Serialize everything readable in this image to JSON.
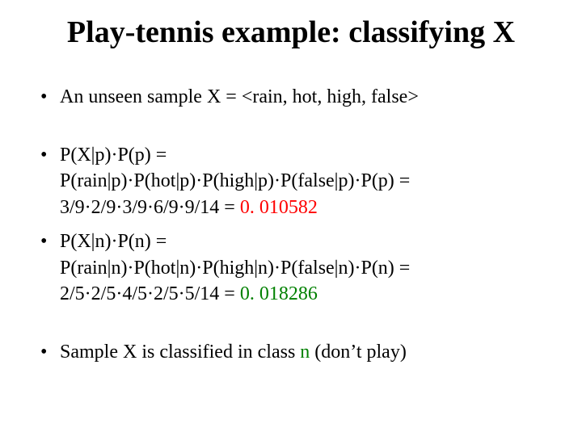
{
  "colors": {
    "text": "#000000",
    "accent_red": "#ff0000",
    "accent_green": "#008000",
    "background": "#ffffff"
  },
  "typography": {
    "family": "Times New Roman",
    "title_fontsize": 38,
    "body_fontsize": 24
  },
  "title": "Play-tennis example: classifying X",
  "bullets": {
    "b1": "An unseen sample X = <rain, hot, high, false>",
    "b2_line1": "P(X|p)·P(p) =",
    "b2_line2": "P(rain|p)·P(hot|p)·P(high|p)·P(false|p)·P(p) =",
    "b2_line3a": "3/9·2/9·3/9·6/9·9/14 = ",
    "b2_line3b": "0. 010582",
    "b3_line1": "P(X|n)·P(n) =",
    "b3_line2": "P(rain|n)·P(hot|n)·P(high|n)·P(false|n)·P(n) =",
    "b3_line3a": "2/5·2/5·4/5·2/5·5/14 = ",
    "b3_line3b": "0. 018286",
    "b4a": "Sample X is classified in class ",
    "b4b": "n",
    "b4c": " (don’t play)"
  }
}
